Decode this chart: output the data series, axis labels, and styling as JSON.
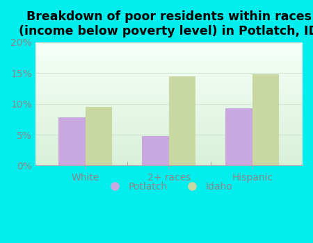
{
  "title": "Breakdown of poor residents within races\n(income below poverty level) in Potlatch, ID",
  "categories": [
    "White",
    "2+ races",
    "Hispanic"
  ],
  "potlatch_values": [
    7.8,
    4.8,
    9.3
  ],
  "idaho_values": [
    9.5,
    14.5,
    14.8
  ],
  "potlatch_color": "#c9a8e0",
  "idaho_color": "#c8d8a0",
  "background_color": "#00eeee",
  "plot_bg_top": "#f5fff8",
  "plot_bg_bottom": "#d8f0d8",
  "grid_color": "#d0e8d0",
  "spine_color": "#aaaaaa",
  "tick_color": "#888888",
  "ylim": [
    0,
    20
  ],
  "yticks": [
    0,
    5,
    10,
    15,
    20
  ],
  "ytick_labels": [
    "0%",
    "5%",
    "10%",
    "15%",
    "20%"
  ],
  "bar_width": 0.32,
  "title_fontsize": 12.5,
  "tick_fontsize": 10,
  "legend_fontsize": 10
}
